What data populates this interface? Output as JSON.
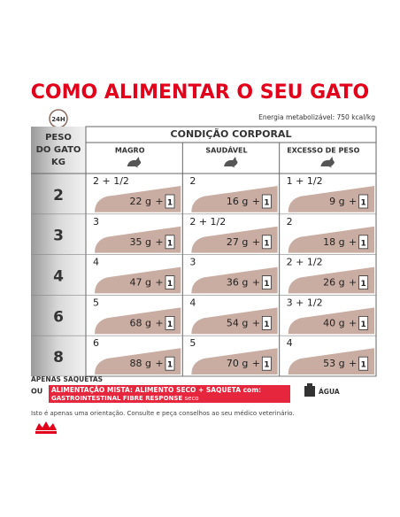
{
  "header": {
    "title": "COMO ALIMENTAR O SEU GATO",
    "badge": "24H",
    "energy": "Energia metabolizável: 750 kcal/kg"
  },
  "table": {
    "weight_header": [
      "PESO",
      "DO GATO",
      "KG"
    ],
    "condition_header": "CONDIÇÃO CORPORAL",
    "columns": [
      "MAGRO",
      "SAUDÁVEL",
      "EXCESSO DE PESO"
    ],
    "plus": "+",
    "rows": [
      {
        "weight": "2",
        "cells": [
          {
            "pouches": "2 + 1/2",
            "dry": "22 g",
            "pouch": "1"
          },
          {
            "pouches": "2",
            "dry": "16 g",
            "pouch": "1"
          },
          {
            "pouches": "1 + 1/2",
            "dry": "9 g",
            "pouch": "1"
          }
        ]
      },
      {
        "weight": "3",
        "cells": [
          {
            "pouches": "3",
            "dry": "35 g",
            "pouch": "1"
          },
          {
            "pouches": "2 + 1/2",
            "dry": "27 g",
            "pouch": "1"
          },
          {
            "pouches": "2",
            "dry": "18 g",
            "pouch": "1"
          }
        ]
      },
      {
        "weight": "4",
        "cells": [
          {
            "pouches": "4",
            "dry": "47 g",
            "pouch": "1"
          },
          {
            "pouches": "3",
            "dry": "36 g",
            "pouch": "1"
          },
          {
            "pouches": "2 + 1/2",
            "dry": "26 g",
            "pouch": "1"
          }
        ]
      },
      {
        "weight": "6",
        "cells": [
          {
            "pouches": "5",
            "dry": "68 g",
            "pouch": "1"
          },
          {
            "pouches": "4",
            "dry": "54 g",
            "pouch": "1"
          },
          {
            "pouches": "3 + 1/2",
            "dry": "40 g",
            "pouch": "1"
          }
        ]
      },
      {
        "weight": "8",
        "cells": [
          {
            "pouches": "6",
            "dry": "88 g",
            "pouch": "1"
          },
          {
            "pouches": "5",
            "dry": "70 g",
            "pouch": "1"
          },
          {
            "pouches": "4",
            "dry": "53 g",
            "pouch": "1"
          }
        ]
      }
    ]
  },
  "footer": {
    "only_pouches": "APENAS SAQUETAS",
    "or": "OU",
    "mixed_line1": "ALIMENTAÇÃO MISTA: ALIMENTO SECO + SAQUETA com:",
    "mixed_line2_bold": "GASTROINTESTINAL FIBRE RESPONSE",
    "mixed_line2_rest": "seco",
    "water": "ÁGUA",
    "note": "Isto é apenas uma orientação. Consulte e peça conselhos ao seu médico veterinário."
  }
}
